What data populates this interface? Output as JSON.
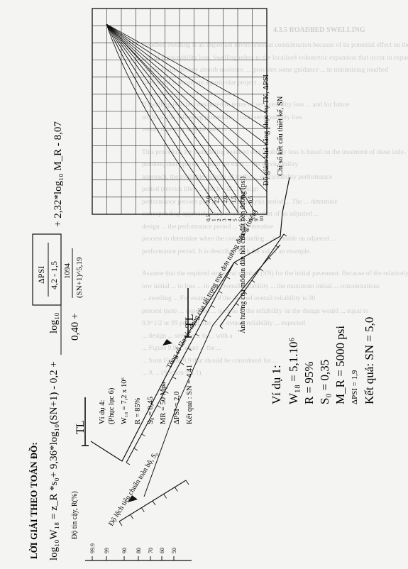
{
  "background_page": {
    "heading": "4.3.5 ROADBED SWELLING",
    "lines": [
      "Roadbed swelling is an important environmental consideration because of its potential effect on the",
      "rate of serviceability loss. Swelling refers to the localized volumetric expansion that occur in expansive",
      "roadbed soils as they absorb moisture. ... provides some guidance ... in minimizing roadbed",
      "swelling if it occurs on a particular project ...",
      "If swelling is to be considered in terms of serviceability loss ... and for future",
      "analysis, the following procedure ... total serviceability loss",
      "versus time that may be used to ...",
      "This procedure for considering roadbed serviceability loss is based on the treatment of these inde-",
      "pendent, descriptions ... used for each ... the serviceability",
      "approach, the available number of traffic ... serviceability performance",
      "period (service life) ... which will ... design",
      "performance periods past the desired analysis period ... The ... determine",
      "corresponding approach when swelling is ... that of an adjusted ...",
      "design ... the performance period ... The iterative",
      "process to determine when the corresponding ... to enable an adjusted ...",
      "performance period. It is described with the aid of an example.",
      "Assume that the required structural number (SN) for the initial pavement. Because of the relatively",
      "low initial ... to loss ... in a ... overall reliability ... the maximum initial ... concentrations",
      "... swelling ... For example, if the desired overall reliability is 90",
      "percent (note ... expected ... such as ... the reliability on the design would ... equal to",
      "0.9^1/2 or 95 percent, the ... ... overall reliability ... expected",
      "... design ... service ... to ... with a",
      "... Figure 9.9 ... chart ... the ...",
      "... from Figure 9.9 that should be considered for ...",
      "... A ... (Section 9.2.1)."
    ]
  },
  "nomograph": {
    "title": "LỜI GIẢI THEO TOÁN ĐỒ:",
    "equation_line1": "log₁₀W₁₈ = z_R *s₀+ 9,36*log₁₀(SN+1) - 0,2 +",
    "equation_log_psi": "log₁₀",
    "equation_dpsi": "ΔPSI",
    "equation_dpsi_den": "4,2 - 1,5",
    "equation_den_left": "0,40 +",
    "equation_num": "1094",
    "equation_den": "(SN+1)^5,19",
    "equation_tail": "+ 2,32*log₁₀ M_R - 8,07",
    "axes": {
      "reliability": "Độ tin cậy, R(%)",
      "std_deviation": "Độ lệch tiêu chuẩn toàn bộ, S₀",
      "traffic": "Tổng số lần tác dụng của tải trọng trục đơn tương đương (triệu)",
      "resilient_modulus": "Ảnh hưởng của môđun đàn hồi của đất nền đường (psi)",
      "serviceability_loss": "Độ giảm khả năng phục vụ TK, ΔPSI",
      "structural_number": "Chỉ số kết cấu thiết kế, SN"
    },
    "reliability_ticks": [
      "99.9",
      "99",
      "90",
      "80",
      "70",
      "60",
      "50"
    ],
    "pivot_labels": [
      "TL",
      "TL"
    ],
    "dpsi_curve_labels": [
      "3,0",
      "2,5",
      "2,0",
      "1,5",
      "1,0",
      "0,5"
    ],
    "sn_ticks": [
      "0,5",
      "1",
      "2",
      "3",
      "4",
      "5",
      "6",
      "7",
      "8",
      "9",
      "10"
    ],
    "example4": {
      "title": "Ví dụ 4:",
      "subtitle": "(Phục lục 6)",
      "W18": "W₁₈ = 7,2 x 10⁶",
      "R": "R = 85%",
      "S0": "S₀ = 0,45",
      "MR": "MR = 50 Mpa",
      "dpsi": "ΔPSI = 2,0",
      "result": "Kết quả : SN = 4,41"
    },
    "example1": {
      "title": "Ví dụ 1:",
      "W18": "W₁₈ = 5,1.10⁶",
      "R": "R = 95%",
      "S0": "S₀ = 0,35",
      "MR": "M_R = 5000 psi",
      "dpsi": "ΔPSI = 1,9",
      "result": "Kết quả: SN = 5,0"
    }
  },
  "chart_data": {
    "type": "nomograph",
    "title": "LỜI GIẢI THEO TOÁN ĐỒ:",
    "scales": [
      {
        "name": "Độ tin cậy, R(%)",
        "ticks": [
          "99.9",
          "99",
          "90",
          "80",
          "70",
          "60",
          "50"
        ]
      },
      {
        "name": "Độ lệch tiêu chuẩn toàn bộ, S₀"
      },
      {
        "name": "Tổng số lần tác dụng của tải trọng trục đơn tương đương (triệu)"
      },
      {
        "name": "Ảnh hưởng của môđun đàn hồi của đất nền đường (psi)"
      },
      {
        "name": "Chỉ số kết cấu thiết kế, SN",
        "ticks": [
          "0,5",
          "1",
          "2",
          "3",
          "4",
          "5",
          "6",
          "7",
          "8",
          "9",
          "10"
        ]
      }
    ],
    "series": [
      {
        "name": "3,0"
      },
      {
        "name": "2,5"
      },
      {
        "name": "2,0"
      },
      {
        "name": "1,5"
      },
      {
        "name": "1,0"
      },
      {
        "name": "0,5"
      }
    ],
    "examples": [
      {
        "W18_million": 7.2,
        "R_percent": 85,
        "S0": 0.45,
        "MR_MPa": 50,
        "dPSI": 2.0,
        "SN": 4.41
      },
      {
        "W18_million": 5.1,
        "R_percent": 95,
        "S0": 0.35,
        "MR_psi": 5000,
        "dPSI": 1.9,
        "SN": 5.0
      }
    ]
  }
}
